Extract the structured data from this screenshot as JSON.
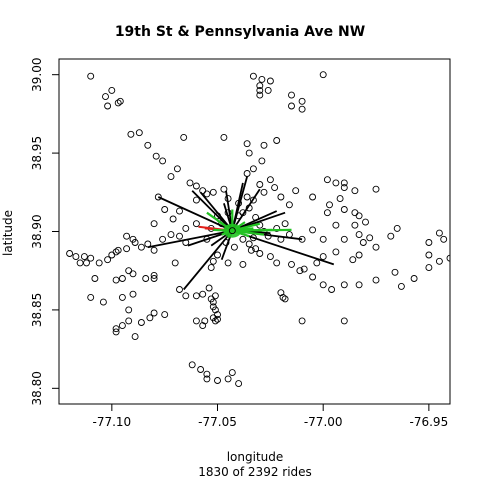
{
  "chart_data": {
    "type": "scatter",
    "title": "19th St & Pennsylvania Ave NW",
    "xlabel": "longitude",
    "ylabel": "latitude",
    "subtitle": "1830  of  2392  rides",
    "xlim": [
      -77.125,
      -76.94
    ],
    "ylim": [
      38.79,
      39.01
    ],
    "x_ticks": [
      -77.1,
      -77.05,
      -77.0,
      -76.95
    ],
    "x_tick_labels": [
      "-77.10",
      "-77.05",
      "-77.00",
      "-76.95"
    ],
    "y_ticks": [
      38.8,
      38.85,
      38.9,
      38.95,
      39.0
    ],
    "y_tick_labels": [
      "38.80",
      "38.85",
      "38.90",
      "38.95",
      "39.00"
    ],
    "grid": false,
    "hub": [
      -77.043,
      38.9005
    ],
    "station_points": [
      [
        -77.11,
        38.999
      ],
      [
        -77.1,
        38.99
      ],
      [
        -77.103,
        38.986
      ],
      [
        -77.096,
        38.983
      ],
      [
        -77.102,
        38.98
      ],
      [
        -77.097,
        38.982
      ],
      [
        -77.091,
        38.962
      ],
      [
        -77.087,
        38.963
      ],
      [
        -77.083,
        38.955
      ],
      [
        -77.079,
        38.948
      ],
      [
        -77.076,
        38.945
      ],
      [
        -77.072,
        38.935
      ],
      [
        -77.069,
        38.94
      ],
      [
        -77.063,
        38.931
      ],
      [
        -77.06,
        38.929
      ],
      [
        -77.057,
        38.926
      ],
      [
        -77.055,
        38.924
      ],
      [
        -77.052,
        38.925
      ],
      [
        -77.047,
        38.927
      ],
      [
        -77.045,
        38.921
      ],
      [
        -77.066,
        38.96
      ],
      [
        -77.047,
        38.96
      ],
      [
        -77.033,
        38.999
      ],
      [
        -77.029,
        38.997
      ],
      [
        -77.025,
        38.996
      ],
      [
        -77.03,
        38.993
      ],
      [
        -77.03,
        38.99
      ],
      [
        -77.03,
        38.987
      ],
      [
        -77.026,
        38.99
      ],
      [
        -77.015,
        38.987
      ],
      [
        -77.015,
        38.98
      ],
      [
        -77.01,
        38.983
      ],
      [
        -77.01,
        38.978
      ],
      [
        -77.0,
        39.0
      ],
      [
        -77.036,
        38.956
      ],
      [
        -77.035,
        38.95
      ],
      [
        -77.028,
        38.955
      ],
      [
        -77.022,
        38.958
      ],
      [
        -77.029,
        38.945
      ],
      [
        -77.033,
        38.94
      ],
      [
        -77.036,
        38.937
      ],
      [
        -77.025,
        38.933
      ],
      [
        -77.03,
        38.93
      ],
      [
        -77.028,
        38.925
      ],
      [
        -77.023,
        38.928
      ],
      [
        -77.02,
        38.922
      ],
      [
        -77.016,
        38.917
      ],
      [
        -77.013,
        38.926
      ],
      [
        -77.005,
        38.922
      ],
      [
        -76.998,
        38.933
      ],
      [
        -76.994,
        38.931
      ],
      [
        -76.99,
        38.931
      ],
      [
        -76.985,
        38.926
      ],
      [
        -76.99,
        38.928
      ],
      [
        -76.975,
        38.927
      ],
      [
        -76.997,
        38.917
      ],
      [
        -76.992,
        38.921
      ],
      [
        -76.998,
        38.912
      ],
      [
        -76.99,
        38.914
      ],
      [
        -76.983,
        38.91
      ],
      [
        -76.98,
        38.906
      ],
      [
        -76.985,
        38.904
      ],
      [
        -76.994,
        38.904
      ],
      [
        -77.005,
        38.901
      ],
      [
        -77.01,
        38.895
      ],
      [
        -77.0,
        38.895
      ],
      [
        -76.99,
        38.895
      ],
      [
        -76.983,
        38.898
      ],
      [
        -76.981,
        38.893
      ],
      [
        -76.978,
        38.896
      ],
      [
        -76.975,
        38.89
      ],
      [
        -76.983,
        38.885
      ],
      [
        -76.986,
        38.882
      ],
      [
        -76.994,
        38.887
      ],
      [
        -77.0,
        38.884
      ],
      [
        -77.003,
        38.88
      ],
      [
        -77.009,
        38.876
      ],
      [
        -77.011,
        38.875
      ],
      [
        -77.005,
        38.871
      ],
      [
        -77.0,
        38.866
      ],
      [
        -76.996,
        38.863
      ],
      [
        -76.99,
        38.866
      ],
      [
        -76.983,
        38.866
      ],
      [
        -76.975,
        38.869
      ],
      [
        -76.966,
        38.874
      ],
      [
        -76.963,
        38.865
      ],
      [
        -76.957,
        38.87
      ],
      [
        -76.95,
        38.877
      ],
      [
        -76.945,
        38.881
      ],
      [
        -76.94,
        38.883
      ],
      [
        -76.95,
        38.885
      ],
      [
        -76.943,
        38.895
      ],
      [
        -76.945,
        38.899
      ],
      [
        -76.95,
        38.893
      ],
      [
        -76.965,
        38.902
      ],
      [
        -76.968,
        38.897
      ],
      [
        -76.985,
        38.912
      ],
      [
        -76.99,
        38.843
      ],
      [
        -77.01,
        38.843
      ],
      [
        -77.018,
        38.857
      ],
      [
        -77.019,
        38.858
      ],
      [
        -77.02,
        38.861
      ],
      [
        -77.015,
        38.879
      ],
      [
        -77.022,
        38.88
      ],
      [
        -77.025,
        38.884
      ],
      [
        -77.03,
        38.886
      ],
      [
        -77.032,
        38.889
      ],
      [
        -77.034,
        38.888
      ],
      [
        -77.038,
        38.879
      ],
      [
        -77.045,
        38.88
      ],
      [
        -77.05,
        38.885
      ],
      [
        -77.052,
        38.881
      ],
      [
        -77.053,
        38.877
      ],
      [
        -77.06,
        38.859
      ],
      [
        -77.057,
        38.86
      ],
      [
        -77.054,
        38.864
      ],
      [
        -77.053,
        38.857
      ],
      [
        -77.051,
        38.859
      ],
      [
        -77.052,
        38.855
      ],
      [
        -77.052,
        38.852
      ],
      [
        -77.051,
        38.85
      ],
      [
        -77.05,
        38.847
      ],
      [
        -77.052,
        38.845
      ],
      [
        -77.051,
        38.843
      ],
      [
        -77.05,
        38.844
      ],
      [
        -77.06,
        38.843
      ],
      [
        -77.057,
        38.84
      ],
      [
        -77.056,
        38.843
      ],
      [
        -77.065,
        38.859
      ],
      [
        -77.068,
        38.863
      ],
      [
        -77.075,
        38.847
      ],
      [
        -77.08,
        38.848
      ],
      [
        -77.082,
        38.845
      ],
      [
        -77.086,
        38.842
      ],
      [
        -77.089,
        38.833
      ],
      [
        -77.092,
        38.843
      ],
      [
        -77.095,
        38.84
      ],
      [
        -77.098,
        38.836
      ],
      [
        -77.098,
        38.838
      ],
      [
        -77.104,
        38.855
      ],
      [
        -77.11,
        38.858
      ],
      [
        -77.108,
        38.87
      ],
      [
        -77.112,
        38.88
      ],
      [
        -77.115,
        38.88
      ],
      [
        -77.117,
        38.884
      ],
      [
        -77.12,
        38.886
      ],
      [
        -77.113,
        38.884
      ],
      [
        -77.11,
        38.883
      ],
      [
        -77.106,
        38.88
      ],
      [
        -77.102,
        38.882
      ],
      [
        -77.1,
        38.885
      ],
      [
        -77.098,
        38.887
      ],
      [
        -77.097,
        38.888
      ],
      [
        -77.093,
        38.889
      ],
      [
        -77.089,
        38.893
      ],
      [
        -77.086,
        38.89
      ],
      [
        -77.083,
        38.892
      ],
      [
        -77.08,
        38.888
      ],
      [
        -77.076,
        38.895
      ],
      [
        -77.072,
        38.898
      ],
      [
        -77.068,
        38.897
      ],
      [
        -77.065,
        38.902
      ],
      [
        -77.06,
        38.905
      ],
      [
        -77.09,
        38.895
      ],
      [
        -77.093,
        38.897
      ],
      [
        -77.095,
        38.87
      ],
      [
        -77.092,
        38.875
      ],
      [
        -77.09,
        38.873
      ],
      [
        -77.084,
        38.87
      ],
      [
        -77.08,
        38.872
      ],
      [
        -77.08,
        38.87
      ],
      [
        -77.07,
        38.88
      ],
      [
        -77.065,
        38.893
      ],
      [
        -77.06,
        38.92
      ],
      [
        -77.068,
        38.913
      ],
      [
        -77.071,
        38.908
      ],
      [
        -77.075,
        38.914
      ],
      [
        -77.078,
        38.922
      ],
      [
        -77.08,
        38.905
      ],
      [
        -77.09,
        38.86
      ],
      [
        -77.092,
        38.85
      ],
      [
        -77.095,
        38.858
      ],
      [
        -77.098,
        38.869
      ],
      [
        -77.062,
        38.815
      ],
      [
        -77.058,
        38.812
      ],
      [
        -77.055,
        38.809
      ],
      [
        -77.05,
        38.805
      ],
      [
        -77.045,
        38.806
      ],
      [
        -77.043,
        38.81
      ],
      [
        -77.04,
        38.803
      ],
      [
        -77.055,
        38.806
      ],
      [
        -77.04,
        38.91
      ],
      [
        -77.038,
        38.912
      ],
      [
        -77.035,
        38.915
      ],
      [
        -77.032,
        38.909
      ],
      [
        -77.03,
        38.904
      ],
      [
        -77.028,
        38.9
      ],
      [
        -77.026,
        38.897
      ],
      [
        -77.022,
        38.902
      ],
      [
        -77.02,
        38.895
      ],
      [
        -77.018,
        38.905
      ],
      [
        -77.016,
        38.898
      ],
      [
        -77.045,
        38.912
      ],
      [
        -77.048,
        38.905
      ],
      [
        -77.05,
        38.91
      ],
      [
        -77.053,
        38.902
      ],
      [
        -77.055,
        38.895
      ],
      [
        -77.046,
        38.893
      ],
      [
        -77.042,
        38.89
      ],
      [
        -77.038,
        38.895
      ],
      [
        -77.035,
        38.892
      ],
      [
        -77.033,
        38.896
      ],
      [
        -77.04,
        38.918
      ],
      [
        -77.036,
        38.922
      ],
      [
        -77.033,
        38.92
      ]
    ],
    "black_route_ends": [
      [
        -77.078,
        38.922
      ],
      [
        -77.062,
        38.926
      ],
      [
        -77.064,
        38.891
      ],
      [
        -77.083,
        38.89
      ],
      [
        -77.058,
        38.925
      ],
      [
        -77.046,
        38.926
      ],
      [
        -77.038,
        38.931
      ],
      [
        -77.036,
        38.935
      ],
      [
        -77.022,
        38.913
      ],
      [
        -77.01,
        38.895
      ],
      [
        -76.995,
        38.879
      ],
      [
        -77.066,
        38.863
      ],
      [
        -77.048,
        38.882
      ],
      [
        -77.032,
        38.905
      ],
      [
        -77.03,
        38.927
      ],
      [
        -77.047,
        38.918
      ],
      [
        -77.053,
        38.891
      ],
      [
        -77.025,
        38.899
      ],
      [
        -77.018,
        38.912
      ]
    ],
    "green_route_ends": [
      [
        -77.055,
        38.912
      ],
      [
        -77.038,
        38.902
      ],
      [
        -77.03,
        38.905
      ],
      [
        -77.015,
        38.901
      ],
      [
        -77.024,
        38.901
      ],
      [
        -77.048,
        38.898
      ],
      [
        -77.037,
        38.906
      ],
      [
        -77.05,
        38.907
      ],
      [
        -77.043,
        38.914
      ],
      [
        -77.045,
        38.896
      ],
      [
        -77.033,
        38.902
      ],
      [
        -77.04,
        38.9
      ],
      [
        -77.028,
        38.898
      ],
      [
        -77.052,
        38.901
      ],
      [
        -77.035,
        38.897
      ]
    ],
    "red_route_ends": [
      [
        -77.059,
        38.903
      ],
      [
        -77.056,
        38.902
      ]
    ]
  }
}
